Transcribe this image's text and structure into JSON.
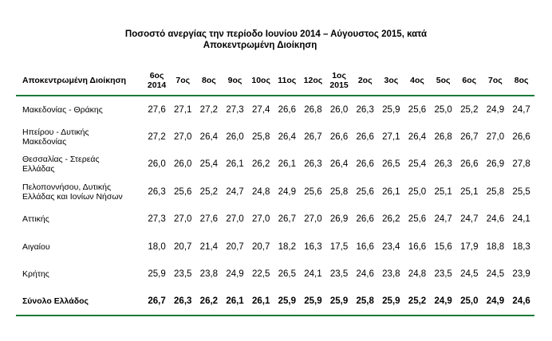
{
  "title": {
    "line1": "Ποσοστό ανεργίας την περίοδο Ιουνίου 2014 – Αύγουστος 2015, κατά",
    "line2": "Αποκεντρωμένη Διοίκηση"
  },
  "table": {
    "region_header": "Αποκεντρωμένη Διοίκηση",
    "columns": [
      {
        "line1": "6ος",
        "line2": "2014"
      },
      {
        "line1": "7ος",
        "line2": ""
      },
      {
        "line1": "8ος",
        "line2": ""
      },
      {
        "line1": "9ος",
        "line2": ""
      },
      {
        "line1": "10ος",
        "line2": ""
      },
      {
        "line1": "11ος",
        "line2": ""
      },
      {
        "line1": "12ος",
        "line2": ""
      },
      {
        "line1": "1ος",
        "line2": "2015"
      },
      {
        "line1": "2ος",
        "line2": ""
      },
      {
        "line1": "3ος",
        "line2": ""
      },
      {
        "line1": "4ος",
        "line2": ""
      },
      {
        "line1": "5ος",
        "line2": ""
      },
      {
        "line1": "6ος",
        "line2": ""
      },
      {
        "line1": "7ος",
        "line2": ""
      },
      {
        "line1": "8ος",
        "line2": ""
      }
    ],
    "rows": [
      {
        "line1": "Μακεδονίας - Θράκης",
        "line2": "",
        "values": [
          "27,6",
          "27,1",
          "27,2",
          "27,3",
          "27,4",
          "26,6",
          "26,8",
          "26,0",
          "26,3",
          "25,9",
          "25,6",
          "25,0",
          "25,2",
          "24,9",
          "24,7"
        ]
      },
      {
        "line1": "Ηπείρου - Δυτικής",
        "line2": "Μακεδονίας",
        "values": [
          "27,2",
          "27,0",
          "26,4",
          "26,0",
          "25,8",
          "26,4",
          "26,7",
          "26,6",
          "26,6",
          "27,1",
          "26,4",
          "26,8",
          "26,7",
          "27,0",
          "26,6"
        ]
      },
      {
        "line1": "Θεσσαλίας - Στερεάς",
        "line2": "Ελλάδας",
        "values": [
          "26,0",
          "26,0",
          "25,4",
          "26,1",
          "26,2",
          "26,1",
          "26,3",
          "26,4",
          "26,6",
          "26,5",
          "25,4",
          "26,3",
          "26,6",
          "26,9",
          "27,8"
        ]
      },
      {
        "line1": "Πελοποννήσου, Δυτικής",
        "line2": "Ελλάδας και Ιονίων Νήσων",
        "values": [
          "26,3",
          "25,6",
          "25,2",
          "24,7",
          "24,8",
          "24,9",
          "25,6",
          "25,8",
          "25,6",
          "26,1",
          "25,0",
          "25,1",
          "25,1",
          "25,8",
          "25,5"
        ]
      },
      {
        "line1": "Αττικής",
        "line2": "",
        "values": [
          "27,3",
          "27,0",
          "27,6",
          "27,0",
          "27,0",
          "26,7",
          "27,0",
          "26,9",
          "26,6",
          "26,2",
          "25,6",
          "24,7",
          "24,7",
          "24,6",
          "24,1"
        ]
      },
      {
        "line1": "Αιγαίου",
        "line2": "",
        "values": [
          "18,0",
          "20,7",
          "21,4",
          "20,7",
          "20,7",
          "18,2",
          "16,3",
          "17,5",
          "16,6",
          "23,4",
          "16,6",
          "15,6",
          "17,9",
          "18,8",
          "18,3"
        ]
      },
      {
        "line1": "Κρήτης",
        "line2": "",
        "values": [
          "25,9",
          "23,5",
          "23,8",
          "24,9",
          "22,5",
          "26,5",
          "24,1",
          "23,5",
          "24,6",
          "23,8",
          "24,8",
          "23,5",
          "24,5",
          "24,5",
          "23,9"
        ]
      }
    ],
    "total": {
      "label": "Σύνολο Ελλάδος",
      "values": [
        "26,7",
        "26,3",
        "26,2",
        "26,1",
        "26,1",
        "25,9",
        "25,9",
        "25,9",
        "25,8",
        "25,9",
        "25,2",
        "24,9",
        "25,0",
        "24,9",
        "24,6"
      ]
    }
  },
  "colors": {
    "rule": "#1a7a3a"
  }
}
